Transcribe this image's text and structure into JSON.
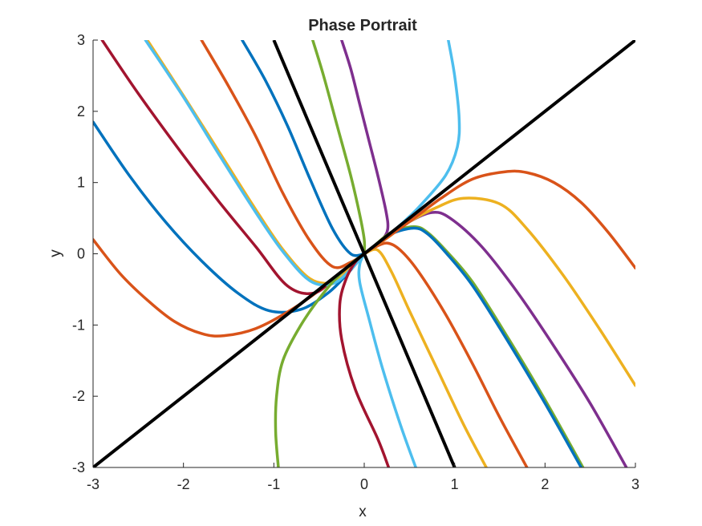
{
  "chart_data": {
    "type": "line",
    "title": "Phase Portrait",
    "xlabel": "x",
    "ylabel": "y",
    "xlim": [
      -3,
      3
    ],
    "ylim": [
      -3,
      3
    ],
    "x_ticks": [
      "-3",
      "-2",
      "-1",
      "0",
      "1",
      "2",
      "3"
    ],
    "y_ticks": [
      "-3",
      "-2",
      "-1",
      "0",
      "1",
      "2",
      "3"
    ],
    "grid": false,
    "legend": "none",
    "eigenlines": [
      {
        "x": [
          -3,
          3
        ],
        "y": [
          -3,
          3
        ],
        "color": "#000000"
      },
      {
        "x": [
          -1.0,
          1.0
        ],
        "y": [
          3,
          -3
        ],
        "color": "#000000"
      }
    ],
    "series": [
      {
        "color": "#0072BD",
        "x": [
          -3,
          -2.6,
          -2.2,
          -1.8,
          -1.4,
          -1.05,
          -0.7,
          -0.4,
          -0.2,
          0
        ],
        "y": [
          1.85,
          1.1,
          0.45,
          -0.1,
          -0.55,
          -0.8,
          -0.78,
          -0.55,
          -0.3,
          0
        ]
      },
      {
        "color": "#D95319",
        "x": [
          -3,
          -2.7,
          -2.4,
          -2.1,
          -1.8,
          -1.55,
          -1.2,
          -0.8,
          -0.4,
          0
        ],
        "y": [
          0.2,
          -0.28,
          -0.65,
          -0.95,
          -1.12,
          -1.15,
          -1.05,
          -0.78,
          -0.42,
          0
        ]
      },
      {
        "color": "#A2142F",
        "x": [
          -2.9,
          -2.5,
          -2.0,
          -1.6,
          -1.2,
          -0.85,
          -0.55,
          -0.3,
          0
        ],
        "y": [
          3,
          2.25,
          1.38,
          0.72,
          0.1,
          -0.45,
          -0.55,
          -0.3,
          0
        ]
      },
      {
        "color": "#EDB120",
        "x": [
          -2.4,
          -2.0,
          -1.6,
          -1.2,
          -0.9,
          -0.6,
          -0.35,
          -0.15,
          0
        ],
        "y": [
          3,
          2.22,
          1.42,
          0.62,
          0.06,
          -0.35,
          -0.4,
          -0.2,
          0
        ]
      },
      {
        "color": "#4DBEEE",
        "x": [
          -2.42,
          -2.0,
          -1.6,
          -1.2,
          -0.9,
          -0.6,
          -0.35,
          -0.15,
          0
        ],
        "y": [
          3,
          2.2,
          1.38,
          0.58,
          0.03,
          -0.38,
          -0.42,
          -0.22,
          0
        ]
      },
      {
        "color": "#D95319",
        "x": [
          -1.8,
          -1.5,
          -1.2,
          -0.9,
          -0.6,
          -0.35,
          -0.15,
          0
        ],
        "y": [
          3,
          2.35,
          1.65,
          0.85,
          0.18,
          -0.18,
          -0.12,
          0
        ]
      },
      {
        "color": "#0072BD",
        "x": [
          -1.35,
          -1.1,
          -0.85,
          -0.6,
          -0.35,
          -0.15,
          0
        ],
        "y": [
          3,
          2.45,
          1.8,
          1.05,
          0.35,
          0.0,
          0
        ]
      },
      {
        "color": "#77AC30",
        "x": [
          -0.57,
          -0.45,
          -0.3,
          -0.15,
          -0.05,
          0.0,
          0
        ],
        "y": [
          3,
          2.5,
          1.8,
          1.1,
          0.55,
          0.2,
          0
        ]
      },
      {
        "color": "#7E2F8E",
        "x": [
          -0.25,
          -0.15,
          -0.05,
          0.05,
          0.15,
          0.24,
          0.26,
          0.2,
          0.1,
          0
        ],
        "y": [
          3,
          2.6,
          2.1,
          1.6,
          1.1,
          0.6,
          0.35,
          0.2,
          0.1,
          0
        ]
      },
      {
        "color": "#4DBEEE",
        "x": [
          0.93,
          1.0,
          1.05,
          1.03,
          0.9,
          0.6,
          0.35,
          0.15,
          0
        ],
        "y": [
          3,
          2.5,
          1.9,
          1.5,
          1.1,
          0.65,
          0.35,
          0.15,
          0
        ]
      },
      {
        "color": "#77AC30",
        "x": [
          -0.95,
          -0.98,
          -0.97,
          -0.9,
          -0.7,
          -0.45,
          -0.2,
          0
        ],
        "y": [
          -3,
          -2.5,
          -2.0,
          -1.5,
          -1.0,
          -0.55,
          -0.2,
          0
        ]
      },
      {
        "color": "#A2142F",
        "x": [
          0.27,
          0.15,
          -0.1,
          -0.25,
          -0.27,
          -0.2,
          -0.1,
          0
        ],
        "y": [
          -3,
          -2.6,
          -1.9,
          -1.2,
          -0.7,
          -0.35,
          -0.12,
          0
        ]
      },
      {
        "color": "#4DBEEE",
        "x": [
          0.57,
          0.4,
          0.2,
          0.05,
          -0.05,
          -0.05,
          0
        ],
        "y": [
          -3,
          -2.4,
          -1.6,
          -0.9,
          -0.4,
          -0.15,
          0
        ]
      },
      {
        "color": "#EDB120",
        "x": [
          1.35,
          1.1,
          0.8,
          0.5,
          0.3,
          0.15,
          0
        ],
        "y": [
          -3,
          -2.4,
          -1.6,
          -0.8,
          -0.25,
          0.05,
          0
        ]
      },
      {
        "color": "#D95319",
        "x": [
          1.8,
          1.5,
          1.2,
          0.9,
          0.6,
          0.4,
          0.25,
          0.1,
          0
        ],
        "y": [
          -3,
          -2.3,
          -1.55,
          -0.85,
          -0.25,
          0.05,
          0.15,
          0.08,
          0
        ]
      },
      {
        "color": "#77AC30",
        "x": [
          2.42,
          2.0,
          1.6,
          1.2,
          0.9,
          0.7,
          0.55,
          0.3,
          0.1,
          0
        ],
        "y": [
          -3,
          -2.05,
          -1.2,
          -0.4,
          0.05,
          0.3,
          0.38,
          0.3,
          0.1,
          0
        ]
      },
      {
        "color": "#0072BD",
        "x": [
          2.4,
          2.0,
          1.6,
          1.2,
          0.9,
          0.7,
          0.55,
          0.3,
          0.1,
          0
        ],
        "y": [
          -3,
          -2.1,
          -1.25,
          -0.45,
          0.02,
          0.28,
          0.36,
          0.28,
          0.1,
          0
        ]
      },
      {
        "color": "#7E2F8E",
        "x": [
          2.9,
          2.5,
          2.1,
          1.7,
          1.3,
          0.95,
          0.75,
          0.5,
          0.25,
          0
        ],
        "y": [
          -3,
          -2.1,
          -1.3,
          -0.55,
          0.1,
          0.5,
          0.58,
          0.45,
          0.22,
          0
        ]
      },
      {
        "color": "#EDB120",
        "x": [
          3,
          2.6,
          2.2,
          1.8,
          1.5,
          1.1,
          0.8,
          0.5,
          0.25,
          0
        ],
        "y": [
          -1.85,
          -1.05,
          -0.3,
          0.35,
          0.7,
          0.78,
          0.65,
          0.45,
          0.22,
          0
        ]
      },
      {
        "color": "#D95319",
        "x": [
          3,
          2.7,
          2.4,
          2.1,
          1.8,
          1.55,
          1.2,
          0.85,
          0.5,
          0.2,
          0
        ],
        "y": [
          -0.2,
          0.3,
          0.72,
          1.0,
          1.14,
          1.15,
          1.05,
          0.78,
          0.45,
          0.18,
          0
        ]
      }
    ]
  }
}
